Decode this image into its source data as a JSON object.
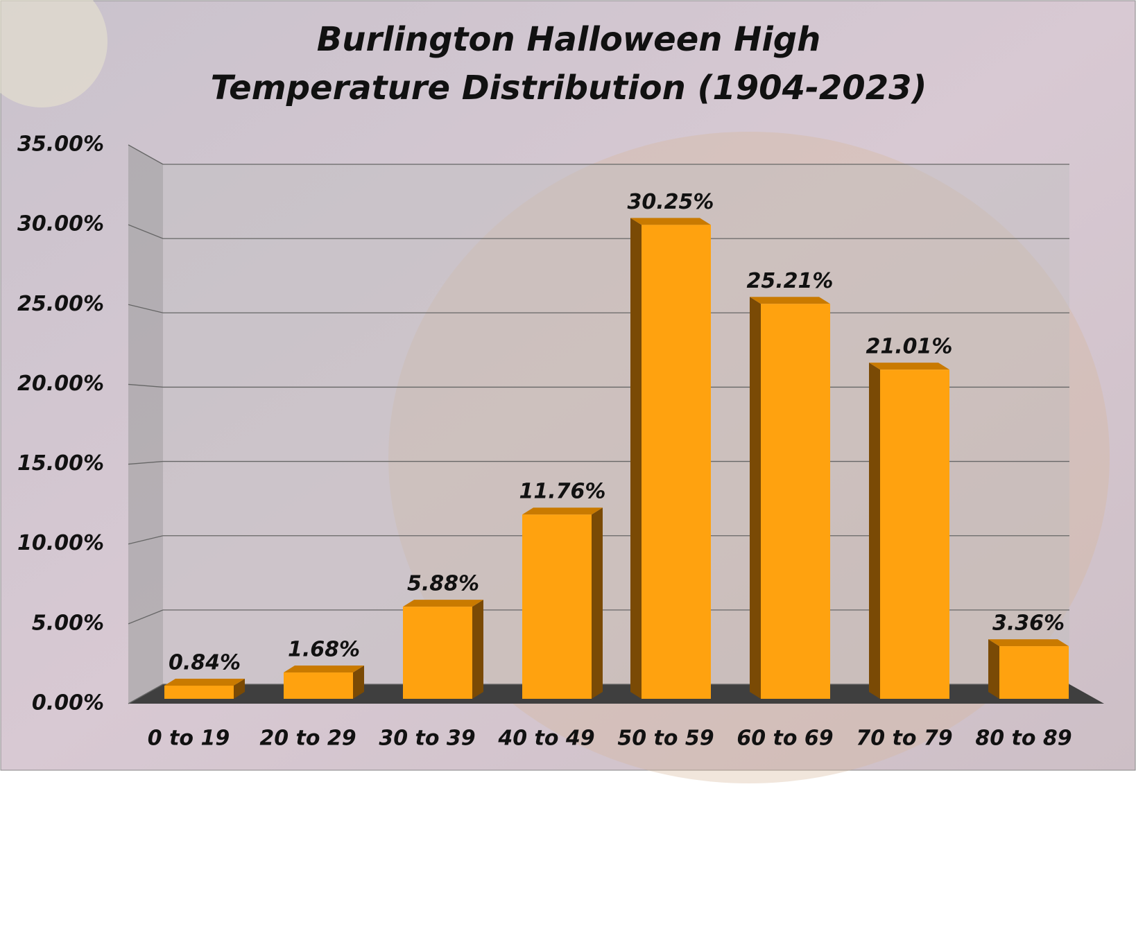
{
  "chart_data": {
    "type": "bar3d",
    "title": "Burlington Halloween High Temperature Distribution (1904-2023)",
    "categories": [
      "0 to 19",
      "20 to 29",
      "30 to 39",
      "40 to 49",
      "50 to 59",
      "60 to 69",
      "70 to 79",
      "80 to 89"
    ],
    "values": [
      0.84,
      1.68,
      5.88,
      11.76,
      30.25,
      25.21,
      21.01,
      3.36
    ],
    "value_labels": [
      "0.84%",
      "1.68%",
      "5.88%",
      "11.76%",
      "30.25%",
      "25.21%",
      "21.01%",
      "3.36%"
    ],
    "color": "#ffa20f",
    "ylim": [
      0,
      35
    ],
    "yticks": [
      {
        "value": 0,
        "label": "0.00%"
      },
      {
        "value": 5,
        "label": "5.00%"
      },
      {
        "value": 10,
        "label": "10.00%"
      },
      {
        "value": 15,
        "label": "15.00%"
      },
      {
        "value": 20,
        "label": "20.00%"
      },
      {
        "value": 25,
        "label": "25.00%"
      },
      {
        "value": 30,
        "label": "30.00%"
      },
      {
        "value": 35,
        "label": "35.00%"
      }
    ],
    "grid": true
  }
}
